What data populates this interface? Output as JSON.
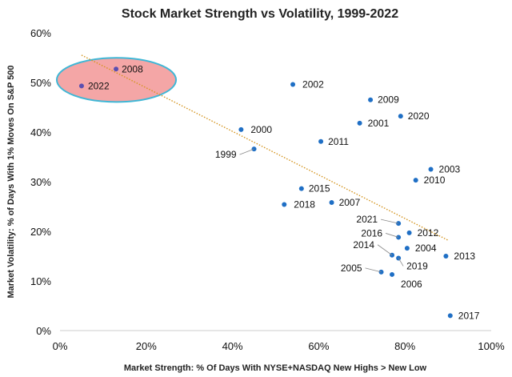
{
  "chart_data": {
    "type": "scatter",
    "title": "Stock Market Strength vs Volatility, 1999-2022",
    "xlabel": "Market Strength: % Of Days With NYSE+NASDAQ New Highs > New Low",
    "ylabel": "Market Volatility: % of Days With 1% Moves On S&P 500",
    "xlim": [
      0,
      1
    ],
    "ylim": [
      0,
      0.6
    ],
    "x_ticks": [
      0,
      0.2,
      0.4,
      0.6,
      0.8,
      1.0
    ],
    "x_tick_labels": [
      "0%",
      "20%",
      "40%",
      "60%",
      "80%",
      "100%"
    ],
    "y_ticks": [
      0,
      0.1,
      0.2,
      0.3,
      0.4,
      0.5,
      0.6
    ],
    "y_tick_labels": [
      "0%",
      "10%",
      "20%",
      "30%",
      "40%",
      "50%",
      "60%"
    ],
    "grid": false,
    "point_color": "#1f6fc5",
    "trendline_color": "#d4941e",
    "highlight_fill": "#f4a6a6",
    "highlight_stroke": "#3fb7d6",
    "highlight_years": [
      "2008",
      "2022"
    ],
    "trendline": [
      {
        "x": 0.05,
        "y": 0.555
      },
      {
        "x": 0.9,
        "y": 0.182
      }
    ],
    "points": [
      {
        "label": "2008",
        "x": 0.13,
        "y": 0.527
      },
      {
        "label": "2022",
        "x": 0.05,
        "y": 0.493
      },
      {
        "label": "2002",
        "x": 0.54,
        "y": 0.496
      },
      {
        "label": "2009",
        "x": 0.72,
        "y": 0.465
      },
      {
        "label": "2020",
        "x": 0.79,
        "y": 0.432
      },
      {
        "label": "2001",
        "x": 0.695,
        "y": 0.418
      },
      {
        "label": "2000",
        "x": 0.42,
        "y": 0.405
      },
      {
        "label": "2011",
        "x": 0.605,
        "y": 0.381
      },
      {
        "label": "1999",
        "x": 0.45,
        "y": 0.366
      },
      {
        "label": "2003",
        "x": 0.86,
        "y": 0.325
      },
      {
        "label": "2010",
        "x": 0.825,
        "y": 0.303
      },
      {
        "label": "2015",
        "x": 0.56,
        "y": 0.286
      },
      {
        "label": "2007",
        "x": 0.63,
        "y": 0.258
      },
      {
        "label": "2018",
        "x": 0.52,
        "y": 0.254
      },
      {
        "label": "2021",
        "x": 0.785,
        "y": 0.216
      },
      {
        "label": "2012",
        "x": 0.81,
        "y": 0.197
      },
      {
        "label": "2016",
        "x": 0.785,
        "y": 0.188
      },
      {
        "label": "2004",
        "x": 0.805,
        "y": 0.166
      },
      {
        "label": "2013",
        "x": 0.895,
        "y": 0.15
      },
      {
        "label": "2014",
        "x": 0.77,
        "y": 0.152
      },
      {
        "label": "2019",
        "x": 0.785,
        "y": 0.146
      },
      {
        "label": "2005",
        "x": 0.745,
        "y": 0.118
      },
      {
        "label": "2006",
        "x": 0.77,
        "y": 0.113
      },
      {
        "label": "2017",
        "x": 0.905,
        "y": 0.03
      }
    ]
  }
}
